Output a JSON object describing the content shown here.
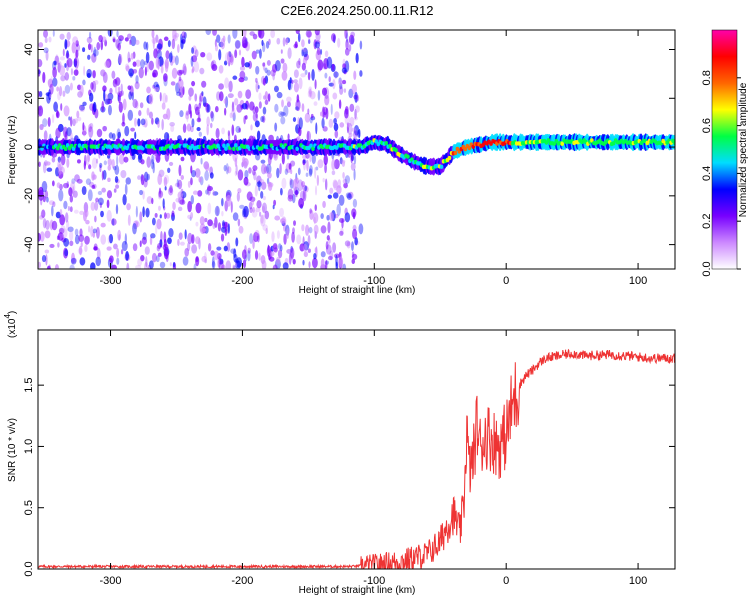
{
  "title": "C2E6.2024.250.00.11.R12",
  "chart_data": [
    {
      "type": "heatmap",
      "xlabel": "Height of straight line (km)",
      "ylabel": "Frequency (Hz)",
      "xlim": [
        -355,
        128
      ],
      "ylim": [
        -50,
        48
      ],
      "xticks": [
        -300,
        -200,
        -100,
        0,
        100
      ],
      "yticks": [
        -40,
        -20,
        0,
        20,
        40
      ],
      "xtick_labels": [
        "-300",
        "-200",
        "-100",
        "0",
        "100"
      ],
      "ytick_labels": [
        "-40",
        "-20",
        "0",
        "20",
        "40"
      ],
      "colorbar": {
        "label": "Normalized spectral amplitude",
        "range": [
          0,
          1
        ],
        "ticks": [
          0.0,
          0.2,
          0.4,
          0.6,
          0.8
        ],
        "tick_labels": [
          "0.0",
          "0.2",
          "0.4",
          "0.6",
          "0.8"
        ],
        "colors": [
          "#ffffff",
          "#cc88ff",
          "#7700ff",
          "#0000ff",
          "#00ddff",
          "#00ff44",
          "#ffff00",
          "#ff6600",
          "#ff0000",
          "#ff00aa"
        ]
      },
      "ridge": {
        "name": "",
        "x": [
          -355,
          -300,
          -250,
          -200,
          -150,
          -110,
          -100,
          -90,
          -80,
          -70,
          -60,
          -50,
          -45,
          -40,
          -30,
          -20,
          -10,
          0,
          50,
          128
        ],
        "y": [
          0,
          0,
          0,
          0,
          0,
          0,
          2,
          1,
          -3,
          -6,
          -8,
          -8,
          -5,
          -2,
          0,
          1,
          2,
          2,
          2,
          2
        ]
      }
    },
    {
      "type": "line",
      "xlabel": "Height of straight line (km)",
      "ylabel": "SNR (10 * v/v)",
      "multiplier_label": "(x10",
      "multiplier_exp": "4",
      "xlim": [
        -355,
        128
      ],
      "ylim": [
        0,
        1.95
      ],
      "xticks": [
        -300,
        -200,
        -100,
        0,
        100
      ],
      "yticks": [
        0.0,
        0.5,
        1.0,
        1.5
      ],
      "xtick_labels": [
        "-300",
        "-200",
        "-100",
        "0",
        "100"
      ],
      "ytick_labels": [
        "0.0",
        "0.5",
        "1.0",
        "1.5"
      ],
      "line_color": "#ee3333",
      "series": [
        {
          "x": [
            -355,
            -300,
            -250,
            -200,
            -150,
            -120,
            -100,
            -80,
            -60,
            -50,
            -45,
            -40,
            -35,
            -32,
            -30,
            -28,
            -25,
            -22,
            -20,
            -15,
            -10,
            -5,
            0,
            5,
            10,
            15,
            20,
            25,
            30,
            40,
            50,
            60,
            80,
            100,
            110,
            128
          ],
          "y": [
            0.02,
            0.02,
            0.02,
            0.02,
            0.02,
            0.02,
            0.03,
            0.06,
            0.12,
            0.22,
            0.35,
            0.45,
            0.3,
            0.55,
            1.15,
            0.8,
            0.9,
            1.2,
            1.0,
            1.1,
            1.05,
            1.0,
            1.1,
            1.35,
            1.5,
            1.58,
            1.62,
            1.68,
            1.72,
            1.74,
            1.76,
            1.74,
            1.75,
            1.73,
            1.72,
            1.72
          ]
        }
      ]
    }
  ]
}
